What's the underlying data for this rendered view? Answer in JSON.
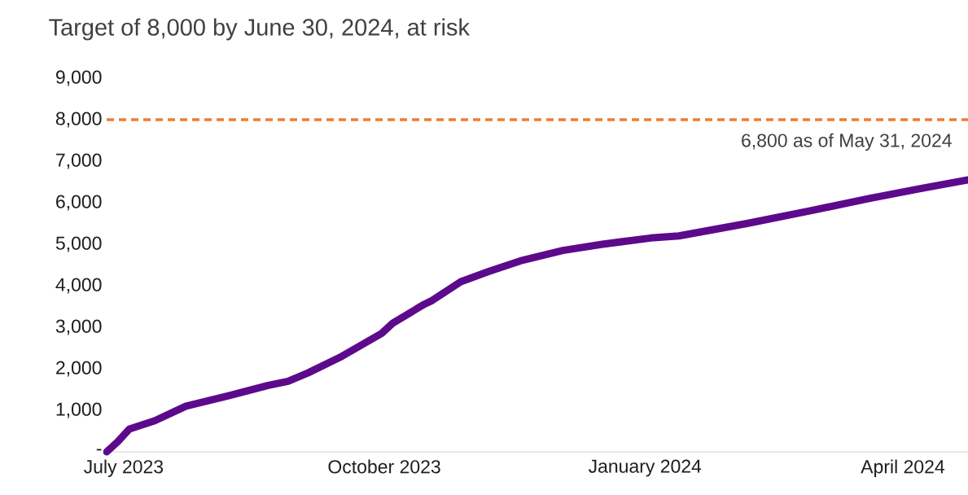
{
  "chart_data": {
    "type": "line",
    "title": "Target of 8,000 by June 30, 2024, at risk",
    "annotations": [
      "6,800 as of May 31, 2024"
    ],
    "x": [
      "2023-06-25",
      "2023-06-29",
      "2023-07-03",
      "2023-07-12",
      "2023-07-23",
      "2023-08-07",
      "2023-08-21",
      "2023-08-28",
      "2023-09-04",
      "2023-09-16",
      "2023-09-30",
      "2023-10-04",
      "2023-10-15",
      "2023-10-18",
      "2023-10-28",
      "2023-11-07",
      "2023-11-18",
      "2023-12-03",
      "2023-12-17",
      "2024-01-03",
      "2024-01-13",
      "2024-02-06",
      "2024-02-28",
      "2024-03-20",
      "2024-04-08",
      "2024-04-24"
    ],
    "series": [
      {
        "color": "#5c0a8b",
        "values": [
          0,
          250,
          550,
          750,
          1100,
          1350,
          1600,
          1700,
          1900,
          2300,
          2850,
          3100,
          3550,
          3650,
          4100,
          4350,
          4600,
          4850,
          5000,
          5150,
          5200,
          5500,
          5800,
          6100,
          6350,
          6550
        ]
      }
    ],
    "xlim": [
      "2023-06-25",
      "2024-04-24"
    ],
    "xticks": [
      {
        "value": "2023-07-01",
        "label": "July 2023"
      },
      {
        "value": "2023-10-01",
        "label": "October 2023"
      },
      {
        "value": "2024-01-01",
        "label": "January 2024"
      },
      {
        "value": "2024-04-01",
        "label": "April 2024"
      }
    ],
    "ylim": [
      0,
      9000
    ],
    "yticks": [
      {
        "value": 0,
        "label": "-"
      },
      {
        "value": 1000,
        "label": "1,000"
      },
      {
        "value": 2000,
        "label": "2,000"
      },
      {
        "value": 3000,
        "label": "3,000"
      },
      {
        "value": 4000,
        "label": "4,000"
      },
      {
        "value": 5000,
        "label": "5,000"
      },
      {
        "value": 6000,
        "label": "6,000"
      },
      {
        "value": 7000,
        "label": "7,000"
      },
      {
        "value": 8000,
        "label": "8,000"
      },
      {
        "value": 9000,
        "label": "9,000"
      }
    ],
    "ref_lines": [
      {
        "axis": "y",
        "value": 8000,
        "color": "#ed7d31",
        "line_style": "dashed"
      }
    ]
  }
}
